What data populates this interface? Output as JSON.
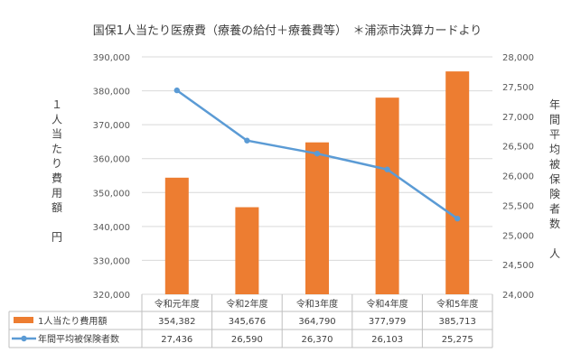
{
  "chart_data": {
    "type": "bar",
    "title": "国保1人当たり医療費（療養の給付＋療養費等）　＊浦添市決算カードより",
    "categories": [
      "令和元年度",
      "令和2年度",
      "令和3年度",
      "令和4年度",
      "令和5年度"
    ],
    "series": [
      {
        "name": "1人当たり費用額",
        "type": "bar",
        "axis": "left",
        "color": "#ED7D31",
        "values": [
          354382,
          345676,
          364790,
          377979,
          385713
        ],
        "display": [
          "354,382",
          "345,676",
          "364,790",
          "377,979",
          "385,713"
        ]
      },
      {
        "name": "年間平均被保険者数",
        "type": "line",
        "axis": "right",
        "color": "#5B9BD5",
        "values": [
          27436,
          26590,
          26370,
          26103,
          25275
        ],
        "display": [
          "27,436",
          "26,590",
          "26,370",
          "26,103",
          "25,275"
        ]
      }
    ],
    "y_left": {
      "label": "１人当たり費用額　円",
      "min": 320000,
      "max": 390000,
      "ticks": [
        "320,000",
        "330,000",
        "340,000",
        "350,000",
        "360,000",
        "370,000",
        "380,000",
        "390,000"
      ]
    },
    "y_right": {
      "label": "年間平均被保険者数　人",
      "min": 24000,
      "max": 28000,
      "ticks": [
        "24,000",
        "24,500",
        "25,000",
        "25,500",
        "26,000",
        "26,500",
        "27,000",
        "27,500",
        "28,000"
      ]
    },
    "grid": true,
    "legend": "data-table-bottom"
  }
}
